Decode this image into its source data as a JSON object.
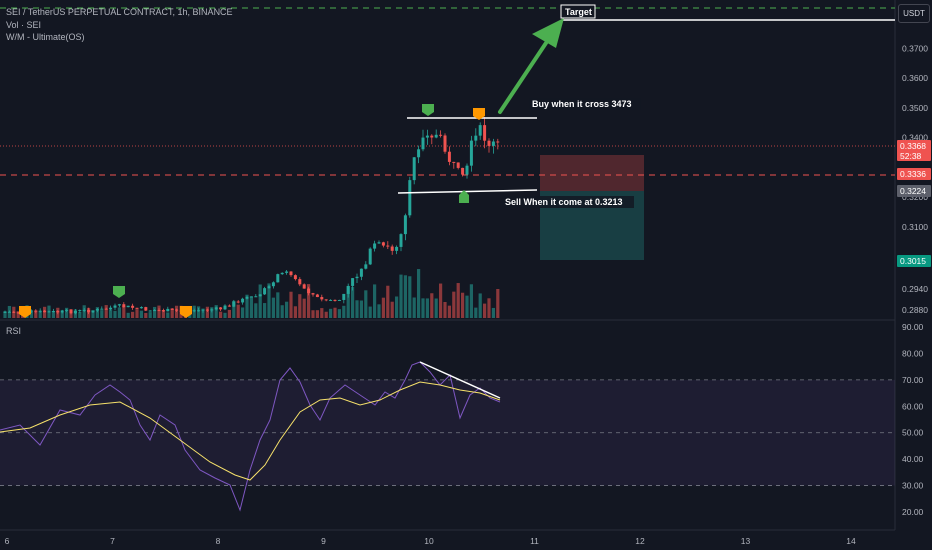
{
  "header": {
    "symbol_line": "SEI / TetherUS PERPETUAL CONTRACT, 1h, BINANCE",
    "indicator_vol": "Vol · SEI",
    "indicator_wm": "W/M - Ultimate(OS)"
  },
  "currency_button": "USDT",
  "rsi_label": "RSI",
  "colors": {
    "background": "#131722",
    "up": "#26a69a",
    "down": "#ef5350",
    "rsi_line": "#7e57c2",
    "rsi_ma": "#f7e26b",
    "annotation_line": "#ffffff",
    "arrow": "#4caf50"
  },
  "annotations": {
    "target_label": "Target",
    "buy_label": "Buy when it cross 3473",
    "sell_label": "Sell When it come at 0.3213"
  },
  "price_badges": {
    "last_price": "0.3368",
    "countdown": "52:38",
    "red_line_price": "0.3336",
    "gray_price": "0.3224",
    "green_price": "0.3015"
  },
  "chart_data": {
    "type": "candlestick",
    "price_axis": {
      "ticks": [
        "0.3700",
        "0.3600",
        "0.3500",
        "0.3400",
        "0.3200",
        "0.3100",
        "0.2940",
        "0.2880"
      ],
      "range": [
        0.285,
        0.383
      ]
    },
    "rsi_axis": {
      "ticks": [
        "90.00",
        "80.00",
        "70.00",
        "60.00",
        "50.00",
        "40.00",
        "30.00",
        "20.00"
      ],
      "range": [
        16,
        92
      ],
      "band": [
        30,
        70
      ]
    },
    "x_axis": {
      "ticks": [
        "6",
        "7",
        "8",
        "9",
        "10",
        "11",
        "12",
        "13",
        "14"
      ],
      "range": [
        6,
        14.5
      ]
    },
    "levels": {
      "target": 0.3795,
      "dashed_green": 0.3815,
      "resistance": 0.3465,
      "support": 0.3225,
      "red_dashed": 0.3336,
      "last_price_dotted": 0.3368
    },
    "position_box": {
      "x_from": 11.05,
      "x_to": 12.4,
      "stop_top": 0.3368,
      "entry": 0.3224,
      "target_bottom": 0.3015
    },
    "signals": [
      {
        "x": 7.08,
        "price": 0.2962,
        "color": "green",
        "pos": "above"
      },
      {
        "x": 6.22,
        "price": 0.2885,
        "color": "orange",
        "pos": "above"
      },
      {
        "x": 7.7,
        "price": 0.2893,
        "color": "orange",
        "pos": "above"
      },
      {
        "x": 9.98,
        "price": 0.3475,
        "color": "green",
        "pos": "above"
      },
      {
        "x": 10.48,
        "price": 0.347,
        "color": "orange",
        "pos": "above"
      },
      {
        "x": 10.35,
        "price": 0.3222,
        "color": "green",
        "pos": "below"
      }
    ],
    "rsi_trendline": {
      "x1": 9.9,
      "y1": 77,
      "x2": 10.72,
      "y2": 62
    }
  }
}
